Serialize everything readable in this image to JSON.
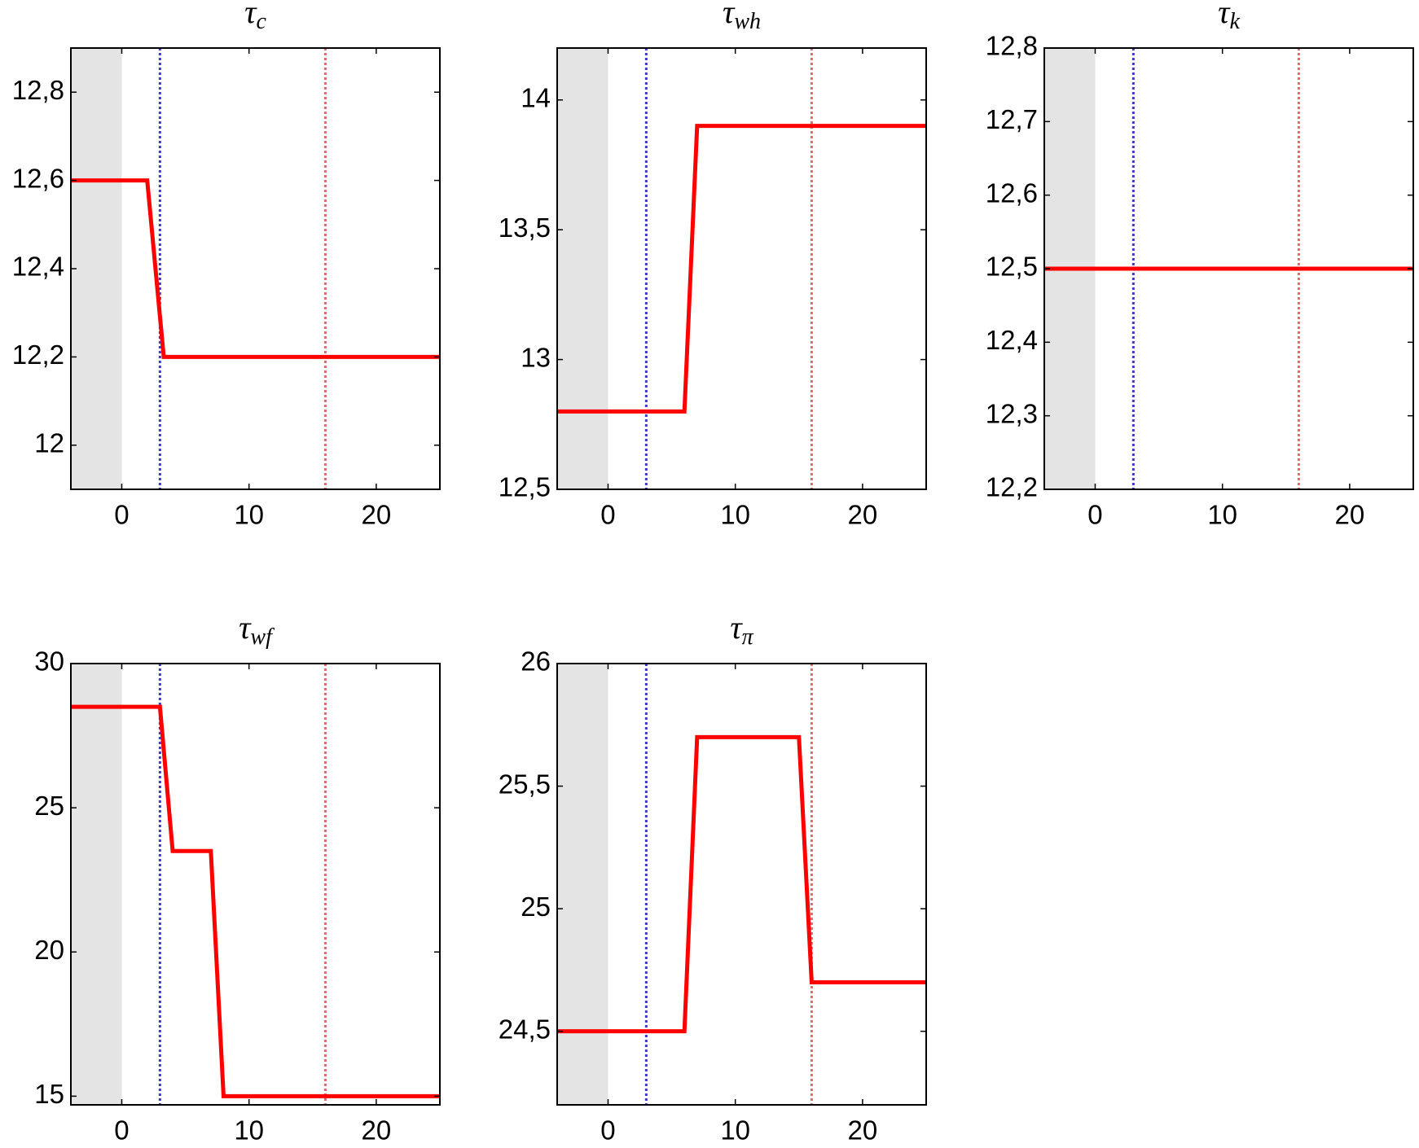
{
  "chart_data": [
    {
      "type": "line",
      "title": "τ",
      "title_subscript": "c",
      "x": [
        -4,
        2,
        3.3,
        25
      ],
      "values": [
        12.6,
        12.6,
        12.2,
        12.2
      ],
      "color": "#ff0000",
      "xlim": [
        -4,
        25
      ],
      "xticks": [
        0,
        10,
        20
      ],
      "ylim": [
        11.9,
        12.9
      ],
      "yticks": [
        12,
        {
          "value": 12.2,
          "label": "12,2"
        },
        {
          "value": 12.4,
          "label": "12,4"
        },
        {
          "value": 12.6,
          "label": "12,6"
        },
        {
          "value": 12.8,
          "label": "12,8"
        }
      ],
      "shade": [
        -4,
        0
      ],
      "shade_color": "#e4e4e4",
      "vlines": [
        {
          "x": 3,
          "color": "#3a3ad0"
        },
        {
          "x": 16,
          "color": "#e06a6a"
        }
      ]
    },
    {
      "type": "line",
      "title": "τ",
      "title_subscript": "wh",
      "x": [
        -4,
        6,
        7,
        25
      ],
      "values": [
        12.8,
        12.8,
        13.9,
        13.9
      ],
      "color": "#ff0000",
      "xlim": [
        -4,
        25
      ],
      "xticks": [
        0,
        10,
        20
      ],
      "ylim": [
        12.5,
        14.2
      ],
      "yticks": [
        {
          "value": 12.5,
          "label": "12,5"
        },
        13,
        {
          "value": 13.5,
          "label": "13,5"
        },
        14
      ],
      "shade": [
        -4,
        0
      ],
      "shade_color": "#e4e4e4",
      "vlines": [
        {
          "x": 3,
          "color": "#3a3ad0"
        },
        {
          "x": 16,
          "color": "#e06a6a"
        }
      ]
    },
    {
      "type": "line",
      "title": "τ",
      "title_subscript": "k",
      "x": [
        -4,
        25
      ],
      "values": [
        12.5,
        12.5
      ],
      "color": "#ff0000",
      "xlim": [
        -4,
        25
      ],
      "xticks": [
        0,
        10,
        20
      ],
      "ylim": [
        12.2,
        12.8
      ],
      "yticks": [
        {
          "value": 12.2,
          "label": "12,2"
        },
        {
          "value": 12.3,
          "label": "12,3"
        },
        {
          "value": 12.4,
          "label": "12,4"
        },
        {
          "value": 12.5,
          "label": "12,5"
        },
        {
          "value": 12.6,
          "label": "12,6"
        },
        {
          "value": 12.7,
          "label": "12,7"
        },
        {
          "value": 12.8,
          "label": "12,8"
        }
      ],
      "shade": [
        -4,
        0
      ],
      "shade_color": "#e4e4e4",
      "vlines": [
        {
          "x": 3,
          "color": "#3a3ad0"
        },
        {
          "x": 16,
          "color": "#e06a6a"
        }
      ]
    },
    {
      "type": "line",
      "title": "τ",
      "title_subscript": "wf",
      "x": [
        -4,
        3,
        4,
        7,
        8,
        25
      ],
      "values": [
        28.5,
        28.5,
        23.5,
        23.5,
        15,
        15
      ],
      "color": "#ff0000",
      "xlim": [
        -4,
        25
      ],
      "xticks": [
        0,
        10,
        20
      ],
      "ylim": [
        14.7,
        30
      ],
      "yticks": [
        15,
        20,
        25,
        30
      ],
      "shade": [
        -4,
        0
      ],
      "shade_color": "#e4e4e4",
      "vlines": [
        {
          "x": 3,
          "color": "#3a3ad0"
        },
        {
          "x": 16,
          "color": "#e06a6a"
        }
      ]
    },
    {
      "type": "line",
      "title": "τ",
      "title_subscript": "π",
      "x": [
        -4,
        6,
        7,
        15,
        16,
        25
      ],
      "values": [
        24.5,
        24.5,
        25.7,
        25.7,
        24.7,
        24.7
      ],
      "color": "#ff0000",
      "xlim": [
        -4,
        25
      ],
      "xticks": [
        0,
        10,
        20
      ],
      "ylim": [
        24.2,
        26
      ],
      "yticks": [
        {
          "value": 24.5,
          "label": "24,5"
        },
        25,
        {
          "value": 25.5,
          "label": "25,5"
        },
        26
      ],
      "shade": [
        -4,
        0
      ],
      "shade_color": "#e4e4e4",
      "vlines": [
        {
          "x": 3,
          "color": "#3a3ad0"
        },
        {
          "x": 16,
          "color": "#e06a6a"
        }
      ]
    }
  ]
}
